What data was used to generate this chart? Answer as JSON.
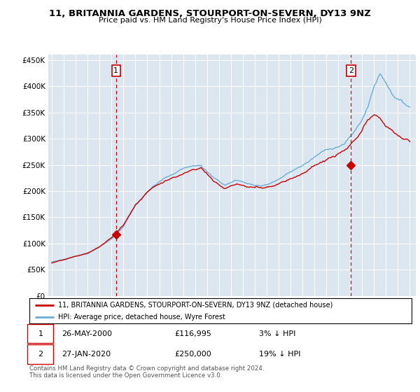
{
  "title": "11, BRITANNIA GARDENS, STOURPORT-ON-SEVERN, DY13 9NZ",
  "subtitle": "Price paid vs. HM Land Registry's House Price Index (HPI)",
  "legend_line1": "11, BRITANNIA GARDENS, STOURPORT-ON-SEVERN, DY13 9NZ (detached house)",
  "legend_line2": "HPI: Average price, detached house, Wyre Forest",
  "annotation1_date": "26-MAY-2000",
  "annotation1_price": "£116,995",
  "annotation1_hpi": "3% ↓ HPI",
  "annotation2_date": "27-JAN-2020",
  "annotation2_price": "£250,000",
  "annotation2_hpi": "19% ↓ HPI",
  "footnote": "Contains HM Land Registry data © Crown copyright and database right 2024.\nThis data is licensed under the Open Government Licence v3.0.",
  "hpi_color": "#6baed6",
  "price_color": "#cc0000",
  "annotation_color": "#cc0000",
  "background_color": "#dce6f1",
  "ylim": [
    0,
    460000
  ],
  "yticks": [
    0,
    50000,
    100000,
    150000,
    200000,
    250000,
    300000,
    350000,
    400000,
    450000
  ],
  "sale1_year": 2000.38,
  "sale1_price": 116995,
  "sale2_year": 2020.07,
  "sale2_price": 250000
}
